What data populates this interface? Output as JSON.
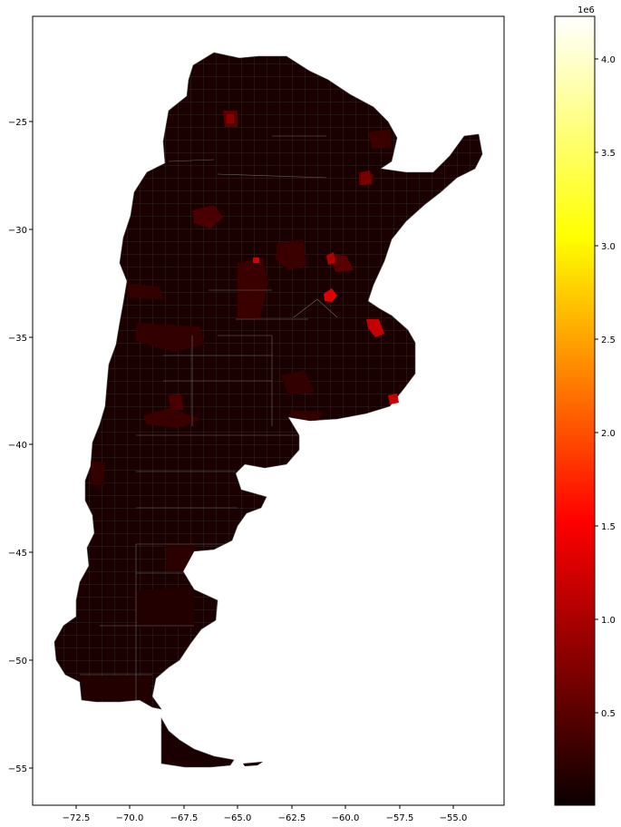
{
  "map": {
    "x_axis": {
      "ticks": [
        "−72.5",
        "−70.0",
        "−67.5",
        "−65.0",
        "−62.5",
        "−60.0",
        "−57.5",
        "−55.0"
      ]
    },
    "y_axis": {
      "ticks": [
        "−25",
        "−30",
        "−35",
        "−40",
        "−45",
        "−50",
        "−55"
      ]
    },
    "colormap": "hot",
    "region_base_color": "#1a0000",
    "region_edge_color": "#6b6b6b"
  },
  "colorbar": {
    "exponent_label": "1e6",
    "ticks": [
      "0.5",
      "1.0",
      "1.5",
      "2.0",
      "2.5",
      "3.0",
      "3.5",
      "4.0"
    ]
  }
}
